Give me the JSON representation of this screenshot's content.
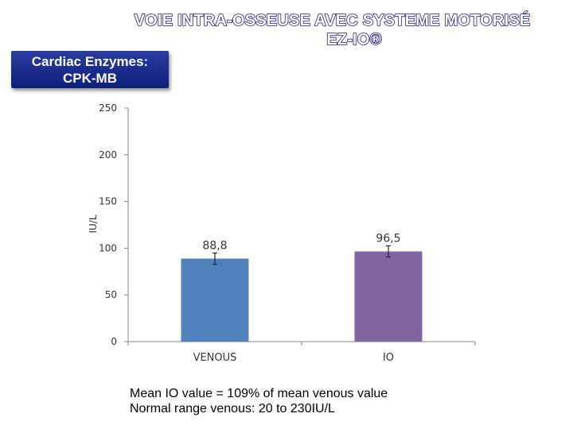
{
  "header": {
    "title_line1": "VOIE INTRA-OSSEUSE AVEC SYSTEME MOTORISÉ",
    "title_line2": "EZ-IO®",
    "badge_line1": "Cardiac Enzymes:",
    "badge_line2": "CPK-MB"
  },
  "chart_data": {
    "type": "bar",
    "categories": [
      "VENOUS",
      "IO"
    ],
    "values": [
      88.8,
      96.5
    ],
    "data_labels": [
      "88,8",
      "96,5"
    ],
    "error_bars": [
      6,
      6
    ],
    "bar_colors": [
      "#4f81bd",
      "#8064a2"
    ],
    "ylabel": "IU/L",
    "ylim": [
      0,
      250
    ],
    "yticks": [
      0,
      50,
      100,
      150,
      200,
      250
    ],
    "grid": false
  },
  "notes": {
    "line1": "Mean IO value = 109% of mean venous value",
    "line2": "Normal range venous: 20 to 230IU/L"
  }
}
